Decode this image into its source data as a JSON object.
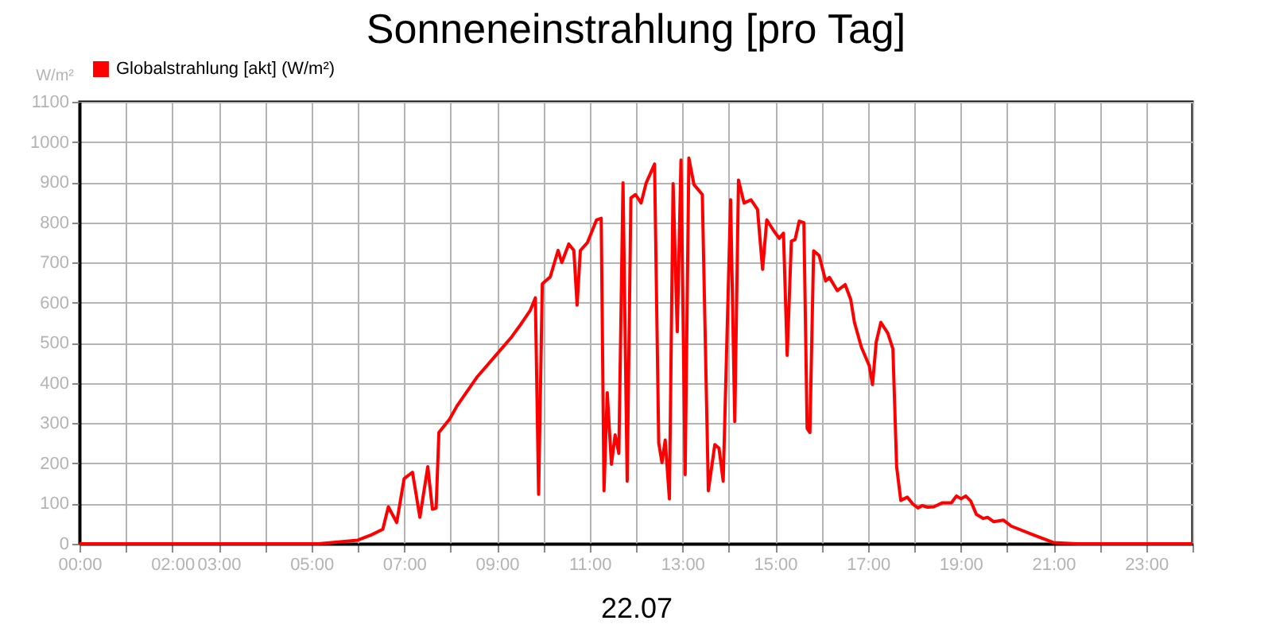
{
  "chart_data": {
    "type": "line",
    "title": "Sonneneinstrahlung [pro Tag]",
    "xlabel": "22.07",
    "ylabel": "W/m²",
    "x": [
      0,
      5.15,
      6.0,
      6.29,
      6.54,
      6.66,
      6.84,
      7.0,
      7.18,
      7.34,
      7.51,
      7.61,
      7.69,
      7.75,
      7.98,
      8.14,
      8.58,
      9.03,
      9.32,
      9.49,
      9.72,
      9.83,
      9.9,
      9.98,
      10.15,
      10.32,
      10.4,
      10.55,
      10.66,
      10.73,
      10.8,
      10.95,
      11.15,
      11.25,
      11.31,
      11.38,
      11.47,
      11.55,
      11.63,
      11.72,
      11.81,
      11.89,
      11.99,
      12.11,
      12.22,
      12.4,
      12.49,
      12.56,
      12.63,
      12.72,
      12.8,
      12.89,
      12.97,
      13.06,
      13.14,
      13.25,
      13.43,
      13.56,
      13.7,
      13.79,
      13.88,
      14.04,
      14.13,
      14.21,
      14.33,
      14.48,
      14.62,
      14.73,
      14.82,
      14.97,
      15.09,
      15.18,
      15.26,
      15.35,
      15.43,
      15.52,
      15.62,
      15.69,
      15.75,
      15.83,
      15.95,
      16.09,
      16.17,
      16.34,
      16.51,
      16.63,
      16.71,
      16.86,
      17.03,
      17.1,
      17.18,
      17.28,
      17.43,
      17.54,
      17.62,
      17.71,
      17.85,
      17.97,
      18.08,
      18.17,
      18.29,
      18.42,
      18.61,
      18.8,
      18.91,
      19.01,
      19.11,
      19.22,
      19.34,
      19.49,
      19.58,
      19.71,
      19.92,
      20.09,
      20.57,
      21.0,
      21.5,
      24
    ],
    "series": [
      {
        "name": "Globalstrahlung [akt] (W/m²)",
        "color": "#ff0000",
        "values": [
          0,
          0,
          9,
          22,
          36,
          92,
          53,
          162,
          178,
          66,
          192,
          86,
          89,
          277,
          310,
          343,
          416,
          476,
          515,
          542,
          581,
          612,
          123,
          647,
          664,
          730,
          700,
          746,
          730,
          594,
          730,
          749,
          806,
          810,
          132,
          376,
          198,
          271,
          225,
          898,
          156,
          861,
          869,
          848,
          898,
          945,
          251,
          202,
          258,
          112,
          896,
          528,
          955,
          172,
          960,
          894,
          869,
          132,
          247,
          238,
          156,
          856,
          304,
          905,
          848,
          856,
          832,
          683,
          806,
          779,
          760,
          773,
          469,
          753,
          757,
          803,
          799,
          287,
          277,
          729,
          717,
          654,
          663,
          630,
          645,
          608,
          551,
          489,
          443,
          396,
          502,
          551,
          524,
          485,
          192,
          108,
          116,
          99,
          89,
          95,
          91,
          92,
          102,
          102,
          119,
          112,
          119,
          106,
          73,
          63,
          66,
          55,
          59,
          44,
          22,
          3,
          0,
          0
        ]
      }
    ],
    "xlim": [
      0,
      24
    ],
    "xticks": [
      {
        "value": 0,
        "label": "00:00"
      },
      {
        "value": 1,
        "label": null
      },
      {
        "value": 2,
        "label": "02:00"
      },
      {
        "value": 3,
        "label": "03:00"
      },
      {
        "value": 4,
        "label": null
      },
      {
        "value": 5,
        "label": "05:00"
      },
      {
        "value": 6,
        "label": null
      },
      {
        "value": 7,
        "label": "07:00"
      },
      {
        "value": 8,
        "label": null
      },
      {
        "value": 9,
        "label": "09:00"
      },
      {
        "value": 10,
        "label": null
      },
      {
        "value": 11,
        "label": "11:00"
      },
      {
        "value": 12,
        "label": null
      },
      {
        "value": 13,
        "label": "13:00"
      },
      {
        "value": 14,
        "label": null
      },
      {
        "value": 15,
        "label": "15:00"
      },
      {
        "value": 16,
        "label": null
      },
      {
        "value": 17,
        "label": "17:00"
      },
      {
        "value": 18,
        "label": null
      },
      {
        "value": 19,
        "label": "19:00"
      },
      {
        "value": 20,
        "label": null
      },
      {
        "value": 21,
        "label": "21:00"
      },
      {
        "value": 22,
        "label": null
      },
      {
        "value": 23,
        "label": "23:00"
      },
      {
        "value": 24,
        "label": null
      }
    ],
    "ylim": [
      0,
      1100
    ],
    "yticks": [
      0,
      100,
      200,
      300,
      400,
      500,
      600,
      700,
      800,
      900,
      1000,
      1100
    ],
    "grid": true,
    "legend": "top left",
    "marker": "none",
    "line_style": "solid"
  }
}
